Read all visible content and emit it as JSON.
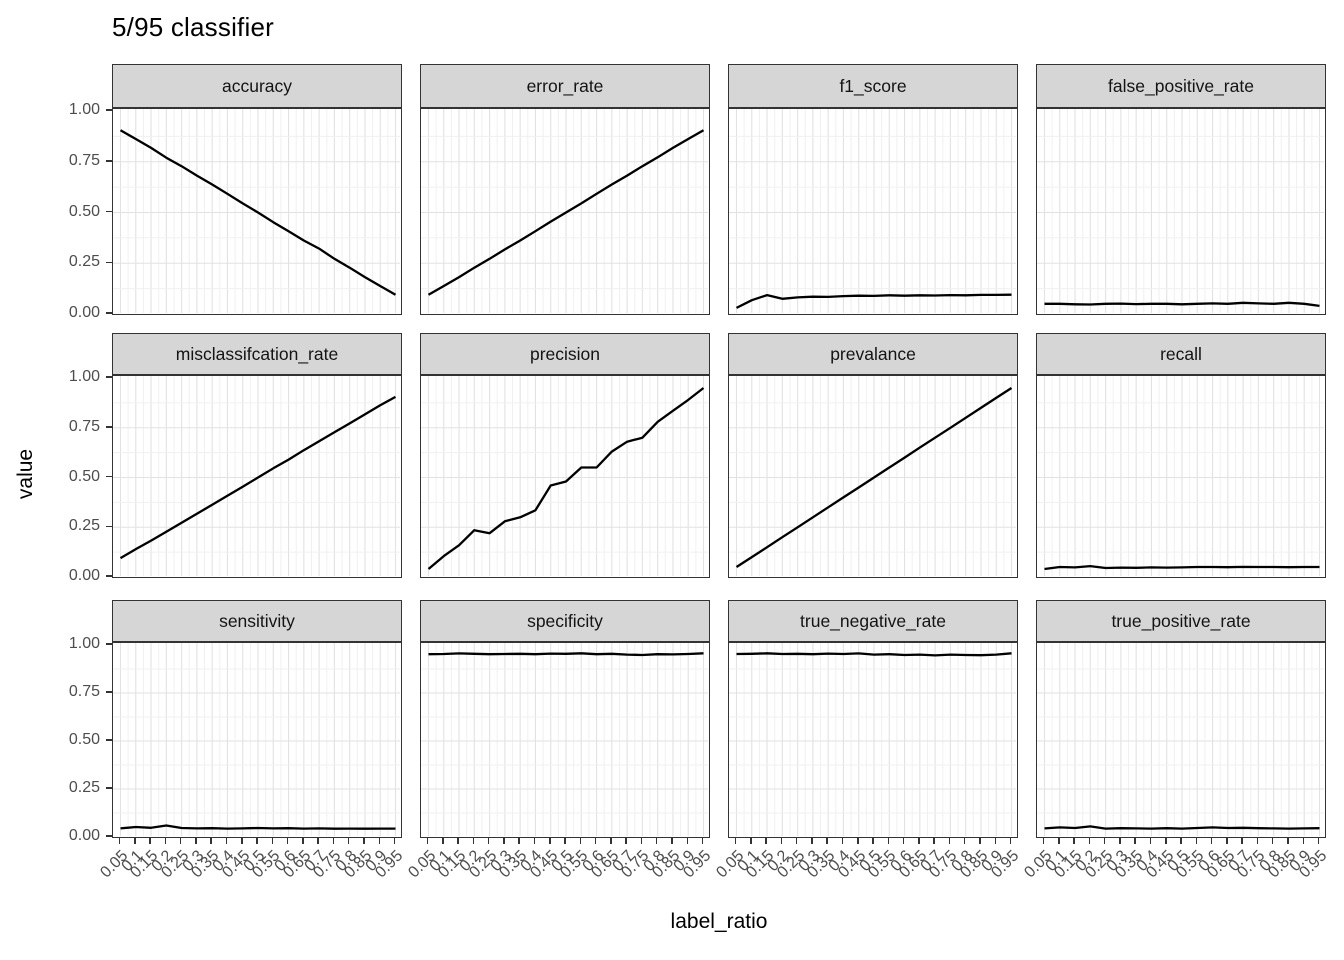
{
  "title": "5/95 classifier",
  "colors": {
    "line": "#000000",
    "strip_background": "#d6d6d6",
    "strip_border": "#333333",
    "panel_border": "#333333",
    "grid_major": "#e2e2e2",
    "grid_minor": "#f0f0f0",
    "tick": "#333333",
    "tick_label": "#4d4d4d",
    "title": "#000000"
  },
  "chart_data": {
    "type": "line",
    "title": "5/95 classifier",
    "facet_layout": {
      "rows": 3,
      "cols": 4
    },
    "xlabel": "label_ratio",
    "ylabel": "value",
    "ylim": [
      0,
      1
    ],
    "y_tick_labels": [
      "1.00",
      "0.75",
      "0.50",
      "0.25",
      "0.00"
    ],
    "y_tick_values": [
      1.0,
      0.75,
      0.5,
      0.25,
      0.0
    ],
    "x": [
      0.05,
      0.1,
      0.15,
      0.2,
      0.25,
      0.3,
      0.35,
      0.4,
      0.45,
      0.5,
      0.55,
      0.6,
      0.65,
      0.7,
      0.75,
      0.8,
      0.85,
      0.9,
      0.95
    ],
    "x_tick_labels": [
      "0.05",
      "0.1",
      "0.15",
      "0.2",
      "0.25",
      "0.3",
      "0.35",
      "0.4",
      "0.45",
      "0.5",
      "0.55",
      "0.6",
      "0.65",
      "0.7",
      "0.75",
      "0.8",
      "0.85",
      "0.9",
      "0.95"
    ],
    "grid": "major+minor",
    "legend": "none",
    "panels": [
      {
        "label": "accuracy",
        "values": [
          0.905,
          0.862,
          0.818,
          0.77,
          0.728,
          0.682,
          0.638,
          0.592,
          0.545,
          0.5,
          0.452,
          0.408,
          0.362,
          0.322,
          0.272,
          0.228,
          0.182,
          0.138,
          0.095
        ]
      },
      {
        "label": "error_rate",
        "values": [
          0.095,
          0.138,
          0.182,
          0.228,
          0.272,
          0.318,
          0.362,
          0.408,
          0.455,
          0.5,
          0.545,
          0.592,
          0.638,
          0.682,
          0.728,
          0.772,
          0.818,
          0.862,
          0.905
        ]
      },
      {
        "label": "f1_score",
        "values": [
          0.03,
          0.068,
          0.093,
          0.075,
          0.082,
          0.085,
          0.084,
          0.088,
          0.09,
          0.089,
          0.092,
          0.09,
          0.092,
          0.091,
          0.093,
          0.092,
          0.094,
          0.094,
          0.095
        ]
      },
      {
        "label": "false_positive_rate",
        "values": [
          0.05,
          0.05,
          0.048,
          0.047,
          0.05,
          0.051,
          0.049,
          0.05,
          0.05,
          0.048,
          0.05,
          0.052,
          0.05,
          0.055,
          0.052,
          0.05,
          0.055,
          0.05,
          0.04
        ]
      },
      {
        "label": "misclassifcation_rate",
        "values": [
          0.095,
          0.14,
          0.183,
          0.227,
          0.273,
          0.318,
          0.363,
          0.408,
          0.454,
          0.5,
          0.546,
          0.59,
          0.637,
          0.682,
          0.727,
          0.772,
          0.817,
          0.863,
          0.905
        ]
      },
      {
        "label": "precision",
        "values": [
          0.04,
          0.105,
          0.16,
          0.235,
          0.22,
          0.28,
          0.3,
          0.335,
          0.46,
          0.48,
          0.55,
          0.55,
          0.63,
          0.68,
          0.7,
          0.78,
          0.835,
          0.89,
          0.95
        ]
      },
      {
        "label": "prevalance",
        "values": [
          0.05,
          0.1,
          0.15,
          0.2,
          0.25,
          0.3,
          0.35,
          0.4,
          0.45,
          0.5,
          0.55,
          0.6,
          0.65,
          0.7,
          0.75,
          0.8,
          0.85,
          0.9,
          0.95
        ]
      },
      {
        "label": "recall",
        "values": [
          0.04,
          0.05,
          0.048,
          0.055,
          0.045,
          0.047,
          0.046,
          0.048,
          0.047,
          0.048,
          0.05,
          0.05,
          0.049,
          0.051,
          0.05,
          0.05,
          0.049,
          0.05,
          0.05
        ]
      },
      {
        "label": "sensitivity",
        "values": [
          0.045,
          0.052,
          0.048,
          0.06,
          0.047,
          0.045,
          0.046,
          0.044,
          0.045,
          0.047,
          0.045,
          0.046,
          0.044,
          0.045,
          0.043,
          0.044,
          0.043,
          0.044,
          0.044
        ]
      },
      {
        "label": "specificity",
        "values": [
          0.952,
          0.953,
          0.956,
          0.954,
          0.952,
          0.953,
          0.954,
          0.952,
          0.955,
          0.954,
          0.957,
          0.952,
          0.954,
          0.95,
          0.948,
          0.952,
          0.951,
          0.953,
          0.957
        ]
      },
      {
        "label": "true_negative_rate",
        "values": [
          0.953,
          0.954,
          0.957,
          0.953,
          0.954,
          0.952,
          0.955,
          0.953,
          0.956,
          0.95,
          0.952,
          0.948,
          0.95,
          0.946,
          0.95,
          0.948,
          0.947,
          0.95,
          0.957
        ]
      },
      {
        "label": "true_positive_rate",
        "values": [
          0.045,
          0.05,
          0.047,
          0.055,
          0.044,
          0.046,
          0.045,
          0.044,
          0.046,
          0.044,
          0.047,
          0.05,
          0.047,
          0.048,
          0.046,
          0.045,
          0.044,
          0.045,
          0.046
        ]
      }
    ]
  }
}
